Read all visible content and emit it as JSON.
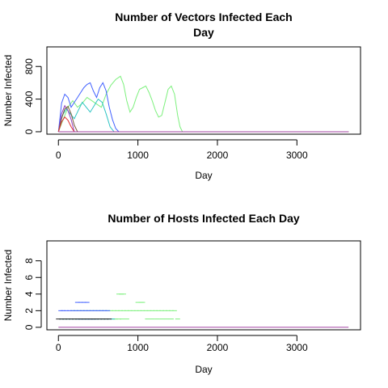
{
  "chart_data": [
    {
      "type": "line",
      "title_lines": [
        "Number of Vectors Infected Each",
        "Day"
      ],
      "xlabel": "Day",
      "ylabel": "Number Infected",
      "xlim": [
        -145,
        3800
      ],
      "ylim": [
        -30,
        1040
      ],
      "xticks": [
        0,
        1000,
        2000,
        3000
      ],
      "yticks": [
        0,
        400,
        800
      ],
      "series": [
        {
          "color": "#7df07d",
          "x": [
            0,
            60,
            120,
            180,
            240,
            300,
            360,
            420,
            480,
            540,
            600,
            660,
            720,
            780,
            820,
            860,
            900,
            940,
            980,
            1020,
            1060,
            1100,
            1140,
            1180,
            1220,
            1260,
            1300,
            1340,
            1380,
            1420,
            1460,
            1500,
            1530,
            1560,
            3650
          ],
          "y": [
            0,
            150,
            300,
            380,
            300,
            350,
            420,
            380,
            340,
            300,
            460,
            570,
            640,
            680,
            580,
            380,
            240,
            300,
            420,
            520,
            540,
            560,
            480,
            380,
            260,
            180,
            200,
            360,
            520,
            560,
            460,
            200,
            60,
            0,
            0
          ]
        },
        {
          "color": "#4060ff",
          "x": [
            0,
            40,
            80,
            120,
            160,
            200,
            240,
            280,
            320,
            360,
            400,
            440,
            480,
            520,
            560,
            600,
            640,
            680,
            720,
            760,
            3650
          ],
          "y": [
            0,
            350,
            460,
            420,
            300,
            360,
            420,
            480,
            540,
            580,
            600,
            500,
            420,
            540,
            600,
            500,
            300,
            150,
            40,
            0,
            0
          ]
        },
        {
          "color": "#2ec4c4",
          "x": [
            0,
            50,
            100,
            150,
            200,
            250,
            300,
            350,
            400,
            450,
            500,
            550,
            600,
            650,
            700,
            3650
          ],
          "y": [
            0,
            200,
            280,
            220,
            160,
            260,
            360,
            300,
            240,
            320,
            400,
            360,
            220,
            60,
            0,
            0
          ]
        },
        {
          "color": "#9040c0",
          "x": [
            0,
            40,
            80,
            120,
            160,
            200,
            3650
          ],
          "y": [
            0,
            220,
            320,
            260,
            150,
            0,
            0
          ]
        },
        {
          "color": "#7b5a3a",
          "x": [
            0,
            40,
            80,
            120,
            160,
            200,
            240,
            3650
          ],
          "y": [
            0,
            160,
            280,
            310,
            220,
            80,
            0,
            0
          ]
        },
        {
          "color": "#e03030",
          "x": [
            0,
            40,
            80,
            120,
            160,
            200,
            3650
          ],
          "y": [
            0,
            120,
            180,
            140,
            60,
            0,
            0
          ]
        },
        {
          "color": "#a040a0",
          "x": [
            0,
            3650
          ],
          "y": [
            0,
            0
          ]
        }
      ]
    },
    {
      "type": "scatter",
      "title_lines": [
        "Number of Hosts Infected Each Day"
      ],
      "xlabel": "Day",
      "ylabel": "Number Infected",
      "xlim": [
        -145,
        3800
      ],
      "ylim": [
        -0.3,
        10.4
      ],
      "xticks": [
        0,
        1000,
        2000,
        3000
      ],
      "yticks": [
        0,
        2,
        4,
        6,
        8
      ],
      "series": [
        {
          "color": "#7df07d",
          "x": [
            180,
            220,
            260,
            300,
            340,
            380,
            420,
            460,
            500,
            540,
            580,
            620,
            660,
            700,
            740,
            780,
            820,
            860,
            900,
            940,
            980,
            1020,
            1060,
            1100,
            1140,
            1180,
            1220,
            1260,
            1300,
            1340,
            1380,
            1420,
            1460,
            760,
            790,
            820,
            1000,
            1040,
            1060,
            700,
            720,
            760,
            800,
            860,
            1120,
            1180,
            1240,
            1300,
            1360,
            1420,
            1500
          ],
          "y": [
            2,
            2,
            2,
            2,
            2,
            2,
            2,
            2,
            2,
            2,
            2,
            2,
            2,
            2,
            2,
            2,
            2,
            2,
            2,
            2,
            2,
            2,
            2,
            2,
            2,
            2,
            2,
            2,
            2,
            2,
            2,
            2,
            2,
            4,
            4,
            4,
            3,
            3,
            3,
            1,
            1,
            1,
            1,
            1,
            1,
            1,
            1,
            1,
            1,
            1,
            1
          ]
        },
        {
          "color": "#4060ff",
          "x": [
            30,
            60,
            100,
            140,
            180,
            220,
            260,
            300,
            340,
            380,
            420,
            460,
            500,
            540,
            580,
            620,
            240,
            280,
            320,
            360,
            260,
            300,
            340,
            380,
            420,
            460
          ],
          "y": [
            2,
            2,
            2,
            2,
            2,
            2,
            2,
            2,
            2,
            2,
            2,
            2,
            2,
            2,
            2,
            2,
            3,
            3,
            3,
            3,
            1,
            1,
            1,
            1,
            1,
            1
          ]
        },
        {
          "color": "#2ec4c4",
          "x": [
            40,
            80,
            120,
            160,
            200,
            240,
            280,
            320,
            360,
            400,
            440,
            480,
            520,
            560,
            600,
            640,
            680
          ],
          "y": [
            1,
            1,
            1,
            1,
            1,
            1,
            1,
            1,
            1,
            1,
            1,
            1,
            1,
            1,
            1,
            1,
            1
          ]
        },
        {
          "color": "#222222",
          "x": [
            0,
            40,
            80,
            120,
            160,
            200,
            240,
            280,
            320,
            360,
            400,
            440,
            480,
            520,
            560,
            600,
            640
          ],
          "y": [
            1,
            1,
            1,
            1,
            1,
            1,
            1,
            1,
            1,
            1,
            1,
            1,
            1,
            1,
            1,
            1,
            1
          ]
        },
        {
          "color": "#a040a0",
          "x": [
            0,
            3650
          ],
          "y": [
            0,
            0
          ],
          "line": true
        }
      ]
    }
  ]
}
